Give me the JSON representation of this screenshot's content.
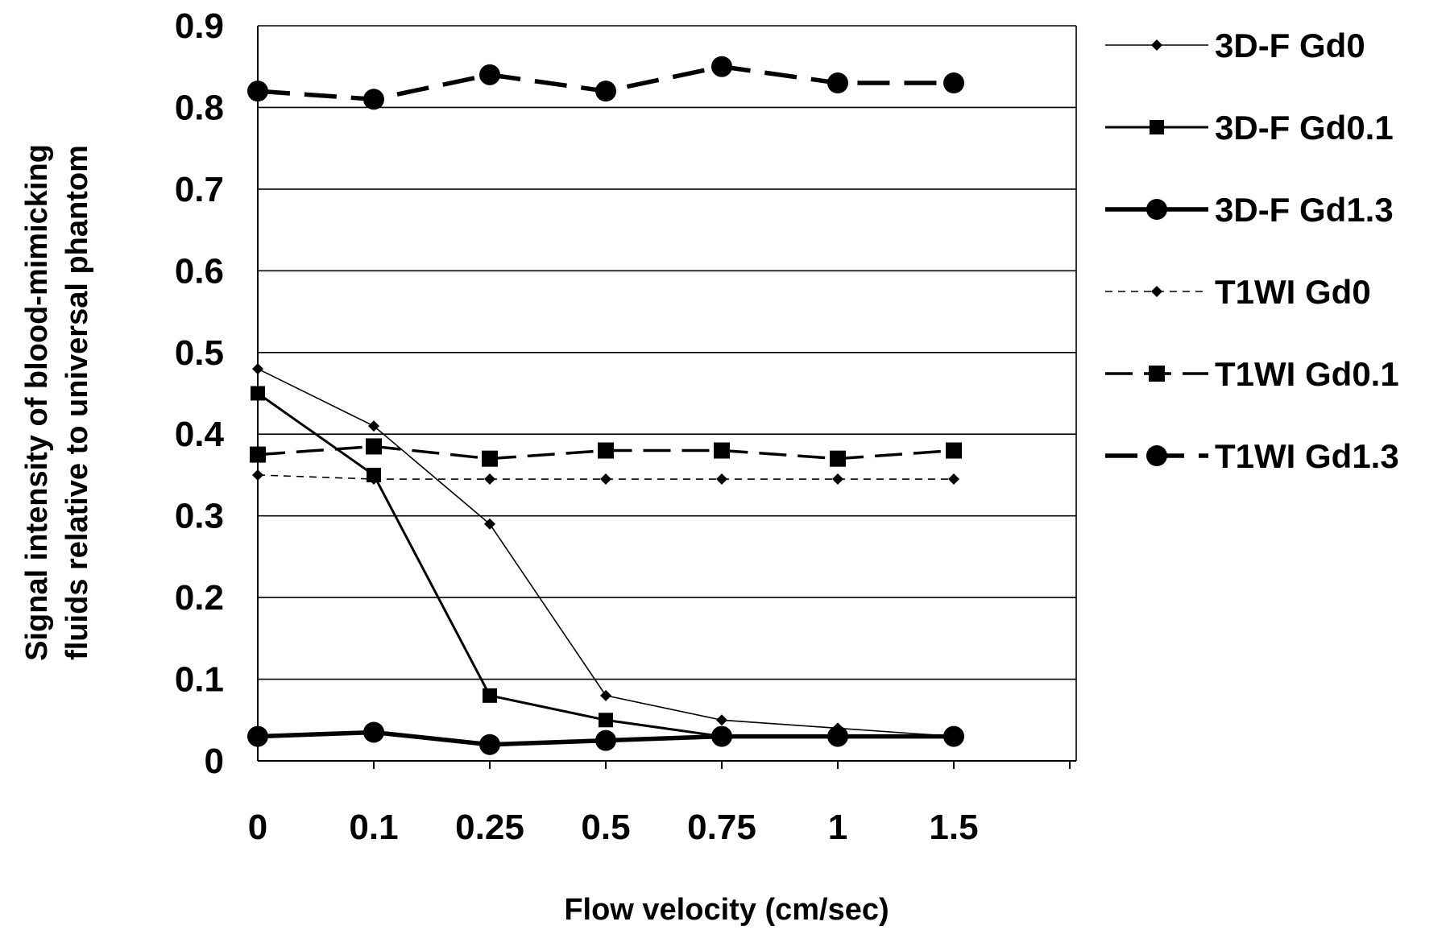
{
  "chart_data": {
    "type": "line",
    "categories": [
      "0",
      "0.1",
      "0.25",
      "0.5",
      "0.75",
      "1",
      "1.5"
    ],
    "xlabel": "Flow velocity (cm/sec)",
    "ylabel_lines": [
      "Signal intensity of blood-mimicking",
      "fluids relative to universal phantom"
    ],
    "ylim": [
      0,
      0.9
    ],
    "yticks": [
      0,
      0.1,
      0.2,
      0.3,
      0.4,
      0.5,
      0.6,
      0.7,
      0.8,
      0.9
    ],
    "grid": "horizontal",
    "legend_position": "right",
    "series": [
      {
        "name": "3D-F Gd0",
        "values": [
          0.48,
          0.41,
          0.29,
          0.08,
          0.05,
          0.04,
          0.03
        ],
        "marker": "diamond",
        "line": "solid-thin",
        "color": "#000000"
      },
      {
        "name": "3D-F Gd0.1",
        "values": [
          0.45,
          0.35,
          0.08,
          0.05,
          0.03,
          0.03,
          0.03
        ],
        "marker": "square",
        "line": "solid-medium",
        "color": "#000000"
      },
      {
        "name": "3D-F Gd1.3",
        "values": [
          0.03,
          0.035,
          0.02,
          0.025,
          0.03,
          0.03,
          0.03
        ],
        "marker": "circle",
        "line": "solid-thick",
        "color": "#000000"
      },
      {
        "name": "T1WI Gd0",
        "values": [
          0.35,
          0.345,
          0.345,
          0.345,
          0.345,
          0.345,
          0.345
        ],
        "marker": "diamond",
        "line": "dashed-thin",
        "color": "#000000"
      },
      {
        "name": "T1WI Gd0.1",
        "values": [
          0.375,
          0.385,
          0.37,
          0.38,
          0.38,
          0.37,
          0.38
        ],
        "marker": "square",
        "line": "dashed-medium",
        "color": "#000000"
      },
      {
        "name": "T1WI Gd1.3",
        "values": [
          0.82,
          0.81,
          0.84,
          0.82,
          0.85,
          0.83,
          0.83
        ],
        "marker": "circle",
        "line": "dashed-thick",
        "color": "#000000"
      }
    ]
  }
}
